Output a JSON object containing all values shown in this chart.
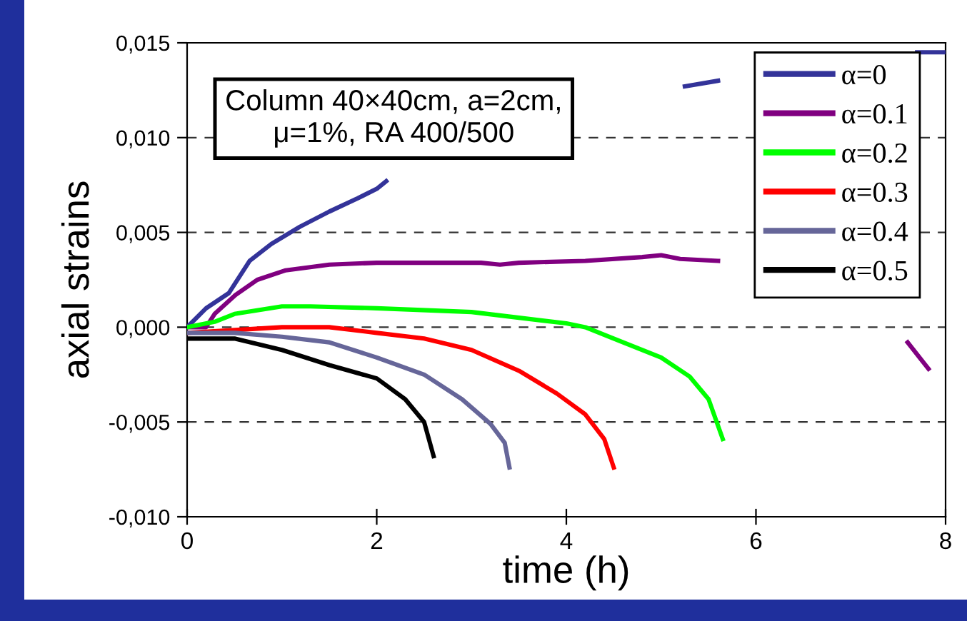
{
  "chart_data": {
    "type": "line",
    "xlabel": "time (h)",
    "ylabel": "axial strains",
    "annotations": [
      "Column 40×40cm, a=2cm,\nμ=1%, RA 400/500"
    ],
    "xlim": [
      0,
      8
    ],
    "xticks": [
      0,
      2,
      4,
      6,
      8
    ],
    "ylim": [
      -0.01,
      0.015
    ],
    "yticks": [
      {
        "value": -0.01,
        "label": "-0,010"
      },
      {
        "value": -0.005,
        "label": "-0,005"
      },
      {
        "value": 0,
        "label": "0,000"
      },
      {
        "value": 0.005,
        "label": "0,005"
      },
      {
        "value": 0.01,
        "label": "0,010"
      },
      {
        "value": 0.015,
        "label": "0,015"
      }
    ],
    "grid": "y",
    "legend": "top right",
    "marker": "none",
    "line_style": "solid",
    "series": [
      {
        "name": "α=0",
        "color": "#333399",
        "x": [
          0,
          0.2,
          0.44,
          0.66,
          0.89,
          1.19,
          1.5,
          1.8,
          2.0,
          2.1,
          2.2,
          5.25,
          5.6,
          5.9,
          7.7,
          7.8,
          8.0
        ],
        "values": [
          0,
          0.001,
          0.0018,
          0.0035,
          0.0044,
          0.0053,
          0.0061,
          0.0068,
          0.0073,
          0.0077,
          null,
          0.0127,
          0.013,
          null,
          0.0145,
          0.0145,
          0.0145
        ]
      },
      {
        "name": "α=0.1",
        "color": "#800080",
        "x": [
          0,
          0.2,
          0.29,
          0.51,
          0.74,
          1.04,
          1.5,
          2.0,
          2.5,
          3.1,
          3.3,
          3.5,
          4.2,
          4.8,
          5.0,
          5.2,
          5.6,
          5.9,
          7.6,
          7.82
        ],
        "values": [
          0,
          0.0,
          0.0007,
          0.0017,
          0.0025,
          0.003,
          0.0033,
          0.0034,
          0.0034,
          0.0034,
          0.0033,
          0.0034,
          0.0035,
          0.0037,
          0.0038,
          0.0036,
          0.0035,
          null,
          -0.0008,
          -0.0022
        ]
      },
      {
        "name": "α=0.2",
        "color": "#00ff00",
        "x": [
          0,
          0.3,
          0.5,
          1.0,
          1.3,
          2.0,
          3.0,
          3.5,
          4.0,
          4.2,
          4.5,
          5.0,
          5.3,
          5.5,
          5.65
        ],
        "values": [
          0,
          0.0003,
          0.0007,
          0.0011,
          0.0011,
          0.001,
          0.0008,
          0.0005,
          0.0002,
          0.0,
          -0.0006,
          -0.0016,
          -0.0026,
          -0.0038,
          -0.0059
        ]
      },
      {
        "name": "α=0.3",
        "color": "#ff0000",
        "x": [
          0,
          0.5,
          1.0,
          1.5,
          2.0,
          2.5,
          3.0,
          3.5,
          3.9,
          4.2,
          4.4,
          4.5
        ],
        "values": [
          -0.0003,
          -0.00015,
          0.0,
          0.0,
          -0.0003,
          -0.0006,
          -0.0012,
          -0.0023,
          -0.0035,
          -0.0046,
          -0.0059,
          -0.0074
        ]
      },
      {
        "name": "α=0.4",
        "color": "#666699",
        "x": [
          0,
          0.5,
          1.0,
          1.5,
          2.0,
          2.5,
          2.9,
          3.2,
          3.35,
          3.4
        ],
        "values": [
          -0.0003,
          -0.0003,
          -0.0005,
          -0.0008,
          -0.0016,
          -0.0025,
          -0.0038,
          -0.0051,
          -0.0061,
          -0.0074
        ]
      },
      {
        "name": "α=0.5",
        "color": "#000000",
        "x": [
          0,
          0.5,
          1.0,
          1.5,
          2.0,
          2.3,
          2.5,
          2.6
        ],
        "values": [
          -0.0006,
          -0.0006,
          -0.0012,
          -0.002,
          -0.0027,
          -0.0038,
          -0.005,
          -0.0068
        ]
      }
    ]
  }
}
